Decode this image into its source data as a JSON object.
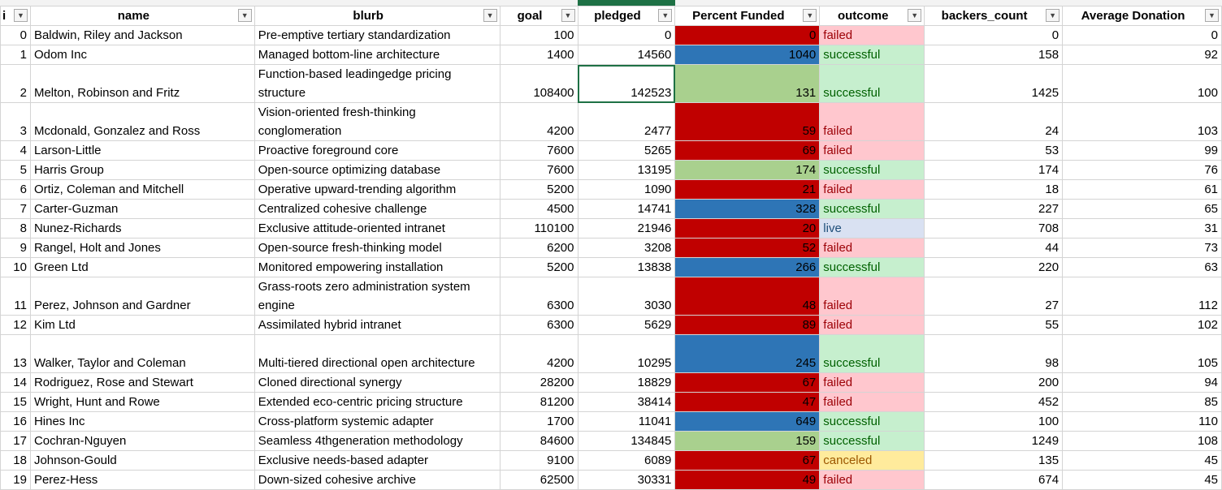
{
  "headers": [
    {
      "key": "idx",
      "label": "i"
    },
    {
      "key": "name",
      "label": "name"
    },
    {
      "key": "blurb",
      "label": "blurb"
    },
    {
      "key": "goal",
      "label": "goal"
    },
    {
      "key": "pledged",
      "label": "pledged"
    },
    {
      "key": "pf",
      "label": "Percent Funded"
    },
    {
      "key": "outcome",
      "label": "outcome"
    },
    {
      "key": "backers",
      "label": "backers_count"
    },
    {
      "key": "avg",
      "label": "Average Donation"
    }
  ],
  "rows": [
    {
      "i": "0",
      "name": "Baldwin, Riley and Jackson",
      "blurb": "Pre-emptive tertiary standardization",
      "goal": "100",
      "pledged": "0",
      "pf": "0",
      "pf_color": "red",
      "outcome": "failed",
      "backers": "0",
      "avg": "0"
    },
    {
      "i": "1",
      "name": "Odom Inc",
      "blurb": "Managed bottom-line architecture",
      "goal": "1400",
      "pledged": "14560",
      "pf": "1040",
      "pf_color": "blue",
      "outcome": "successful",
      "backers": "158",
      "avg": "92"
    },
    {
      "i": "2",
      "name": "Melton, Robinson and Fritz",
      "blurb": "Function-based leadingedge pricing structure",
      "goal": "108400",
      "pledged": "142523",
      "pf": "131",
      "pf_color": "green",
      "outcome": "successful",
      "backers": "1425",
      "avg": "100",
      "tall": true
    },
    {
      "i": "3",
      "name": "Mcdonald, Gonzalez and Ross",
      "blurb": "Vision-oriented fresh-thinking conglomeration",
      "goal": "4200",
      "pledged": "2477",
      "pf": "59",
      "pf_color": "red",
      "outcome": "failed",
      "backers": "24",
      "avg": "103",
      "tall": true
    },
    {
      "i": "4",
      "name": "Larson-Little",
      "blurb": "Proactive foreground core",
      "goal": "7600",
      "pledged": "5265",
      "pf": "69",
      "pf_color": "red",
      "outcome": "failed",
      "backers": "53",
      "avg": "99"
    },
    {
      "i": "5",
      "name": "Harris Group",
      "blurb": "Open-source optimizing database",
      "goal": "7600",
      "pledged": "13195",
      "pf": "174",
      "pf_color": "green",
      "outcome": "successful",
      "backers": "174",
      "avg": "76"
    },
    {
      "i": "6",
      "name": "Ortiz, Coleman and Mitchell",
      "blurb": "Operative upward-trending algorithm",
      "goal": "5200",
      "pledged": "1090",
      "pf": "21",
      "pf_color": "red",
      "outcome": "failed",
      "backers": "18",
      "avg": "61"
    },
    {
      "i": "7",
      "name": "Carter-Guzman",
      "blurb": "Centralized cohesive challenge",
      "goal": "4500",
      "pledged": "14741",
      "pf": "328",
      "pf_color": "blue",
      "outcome": "successful",
      "backers": "227",
      "avg": "65"
    },
    {
      "i": "8",
      "name": "Nunez-Richards",
      "blurb": "Exclusive attitude-oriented intranet",
      "goal": "110100",
      "pledged": "21946",
      "pf": "20",
      "pf_color": "red",
      "outcome": "live",
      "backers": "708",
      "avg": "31"
    },
    {
      "i": "9",
      "name": "Rangel, Holt and Jones",
      "blurb": "Open-source fresh-thinking model",
      "goal": "6200",
      "pledged": "3208",
      "pf": "52",
      "pf_color": "red",
      "outcome": "failed",
      "backers": "44",
      "avg": "73"
    },
    {
      "i": "10",
      "name": "Green Ltd",
      "blurb": "Monitored empowering installation",
      "goal": "5200",
      "pledged": "13838",
      "pf": "266",
      "pf_color": "blue",
      "outcome": "successful",
      "backers": "220",
      "avg": "63"
    },
    {
      "i": "11",
      "name": "Perez, Johnson and Gardner",
      "blurb": "Grass-roots zero administration system engine",
      "goal": "6300",
      "pledged": "3030",
      "pf": "48",
      "pf_color": "red",
      "outcome": "failed",
      "backers": "27",
      "avg": "112",
      "tall": true
    },
    {
      "i": "12",
      "name": "Kim Ltd",
      "blurb": "Assimilated hybrid intranet",
      "goal": "6300",
      "pledged": "5629",
      "pf": "89",
      "pf_color": "red",
      "outcome": "failed",
      "backers": "55",
      "avg": "102"
    },
    {
      "i": "13",
      "name": "Walker, Taylor and Coleman",
      "blurb": "Multi-tiered directional open architecture",
      "goal": "4200",
      "pledged": "10295",
      "pf": "245",
      "pf_color": "blue",
      "outcome": "successful",
      "backers": "98",
      "avg": "105",
      "tall": true
    },
    {
      "i": "14",
      "name": "Rodriguez, Rose and Stewart",
      "blurb": "Cloned directional synergy",
      "goal": "28200",
      "pledged": "18829",
      "pf": "67",
      "pf_color": "red",
      "outcome": "failed",
      "backers": "200",
      "avg": "94"
    },
    {
      "i": "15",
      "name": "Wright, Hunt and Rowe",
      "blurb": "Extended eco-centric pricing structure",
      "goal": "81200",
      "pledged": "38414",
      "pf": "47",
      "pf_color": "red",
      "outcome": "failed",
      "backers": "452",
      "avg": "85"
    },
    {
      "i": "16",
      "name": "Hines Inc",
      "blurb": "Cross-platform systemic adapter",
      "goal": "1700",
      "pledged": "11041",
      "pf": "649",
      "pf_color": "blue",
      "outcome": "successful",
      "backers": "100",
      "avg": "110"
    },
    {
      "i": "17",
      "name": "Cochran-Nguyen",
      "blurb": "Seamless 4thgeneration methodology",
      "goal": "84600",
      "pledged": "134845",
      "pf": "159",
      "pf_color": "green",
      "outcome": "successful",
      "backers": "1249",
      "avg": "108"
    },
    {
      "i": "18",
      "name": "Johnson-Gould",
      "blurb": "Exclusive needs-based adapter",
      "goal": "9100",
      "pledged": "6089",
      "pf": "67",
      "pf_color": "red",
      "outcome": "canceled",
      "backers": "135",
      "avg": "45"
    },
    {
      "i": "19",
      "name": "Perez-Hess",
      "blurb": "Down-sized cohesive archive",
      "goal": "62500",
      "pledged": "30331",
      "pf": "49",
      "pf_color": "red",
      "outcome": "failed",
      "backers": "674",
      "avg": "45"
    }
  ],
  "colors": {
    "selection": "#1e7145",
    "pf_red": "#c00000",
    "pf_blue": "#2e75b6",
    "pf_green": "#a9d08e"
  },
  "icons": {
    "filter": "dropdown-arrow-icon"
  }
}
